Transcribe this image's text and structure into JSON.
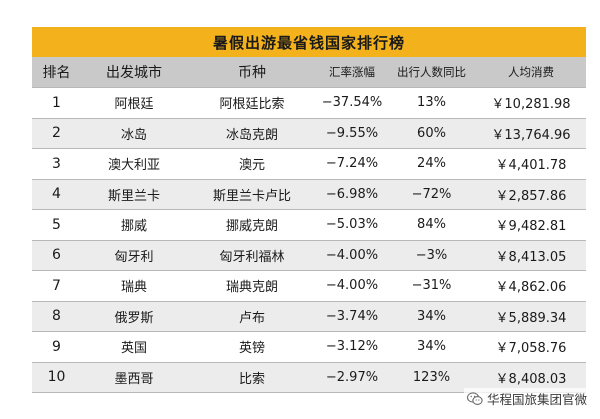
{
  "title": "暑假出游最省钱国家排行榜",
  "columns": [
    "排名",
    "出发城市",
    "币种",
    "汇率涨幅",
    "出行人数同比",
    "人均消费"
  ],
  "rows": [
    {
      "rank": "1",
      "city": "阿根廷",
      "currency": "阿根廷比索",
      "fx_change": "−37.54%",
      "travelers_yoy": "13%",
      "spend": "￥10,281.98"
    },
    {
      "rank": "2",
      "city": "冰岛",
      "currency": "冰岛克朗",
      "fx_change": "−9.55%",
      "travelers_yoy": "60%",
      "spend": "￥13,764.96"
    },
    {
      "rank": "3",
      "city": "澳大利亚",
      "currency": "澳元",
      "fx_change": "−7.24%",
      "travelers_yoy": "24%",
      "spend": "￥4,401.78"
    },
    {
      "rank": "4",
      "city": "斯里兰卡",
      "currency": "斯里兰卡卢比",
      "fx_change": "−6.98%",
      "travelers_yoy": "−72%",
      "spend": "￥2,857.86"
    },
    {
      "rank": "5",
      "city": "挪威",
      "currency": "挪威克朗",
      "fx_change": "−5.03%",
      "travelers_yoy": "84%",
      "spend": "￥9,482.81"
    },
    {
      "rank": "6",
      "city": "匈牙利",
      "currency": "匈牙利福林",
      "fx_change": "−4.00%",
      "travelers_yoy": "−3%",
      "spend": "￥8,413.05"
    },
    {
      "rank": "7",
      "city": "瑞典",
      "currency": "瑞典克朗",
      "fx_change": "−4.00%",
      "travelers_yoy": "−31%",
      "spend": "￥4,862.06"
    },
    {
      "rank": "8",
      "city": "俄罗斯",
      "currency": "卢布",
      "fx_change": "−3.74%",
      "travelers_yoy": "34%",
      "spend": "￥5,889.34"
    },
    {
      "rank": "9",
      "city": "英国",
      "currency": "英镑",
      "fx_change": "−3.12%",
      "travelers_yoy": "34%",
      "spend": "￥7,058.76"
    },
    {
      "rank": "10",
      "city": "墨西哥",
      "currency": "比索",
      "fx_change": "−2.97%",
      "travelers_yoy": "123%",
      "spend": "￥8,408.03"
    }
  ],
  "watermark": {
    "text": "华程国旅集团官微",
    "icon": "wechat-icon"
  },
  "colors": {
    "title_bg": "#f3b21c",
    "header_bg": "#c9c9c9",
    "stripe_bg": "#ececec",
    "divider": "#b8b8b8"
  }
}
